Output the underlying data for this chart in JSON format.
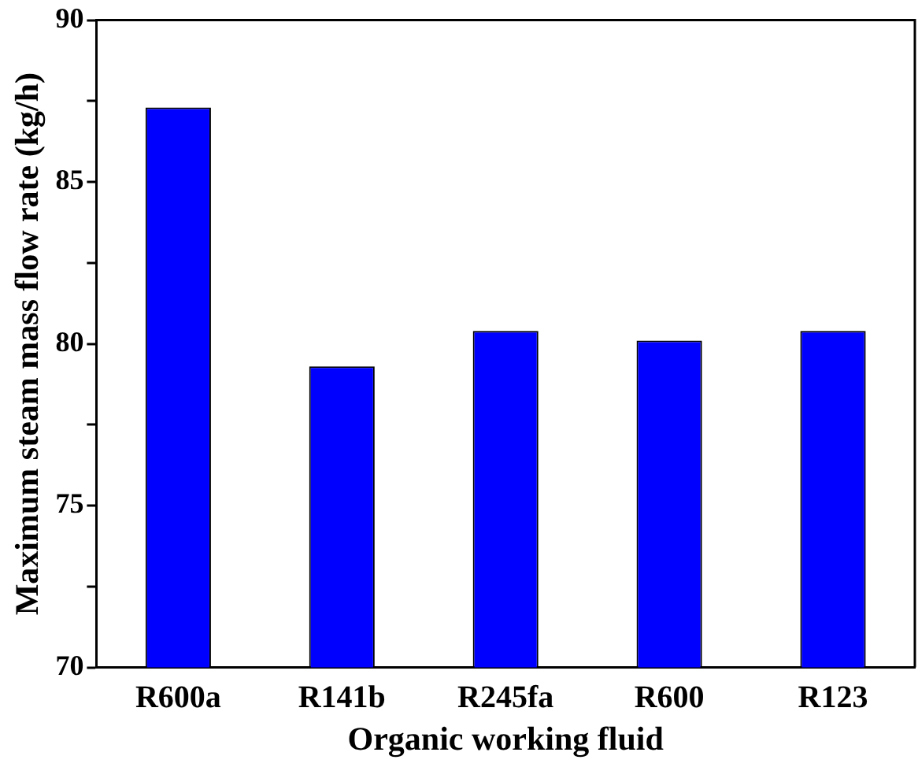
{
  "chart_data": {
    "type": "bar",
    "xlabel": "Organic working fluid",
    "ylabel": "Maximum steam mass flow rate (kg/h)",
    "categories": [
      "R600a",
      "R141b",
      "R245fa",
      "R600",
      "R123"
    ],
    "series": [
      {
        "color": "#0000ff",
        "values": [
          87.3,
          79.3,
          80.4,
          80.1,
          80.4
        ]
      }
    ],
    "ylim": [
      70,
      90
    ],
    "yticks": [
      70,
      {
        "value": 72.5,
        "label": null
      },
      75,
      {
        "value": 77.5,
        "label": null
      },
      80,
      {
        "value": 82.5,
        "label": null
      },
      85,
      {
        "value": 87.5,
        "label": null
      },
      90
    ],
    "grid": false,
    "legend": false
  }
}
